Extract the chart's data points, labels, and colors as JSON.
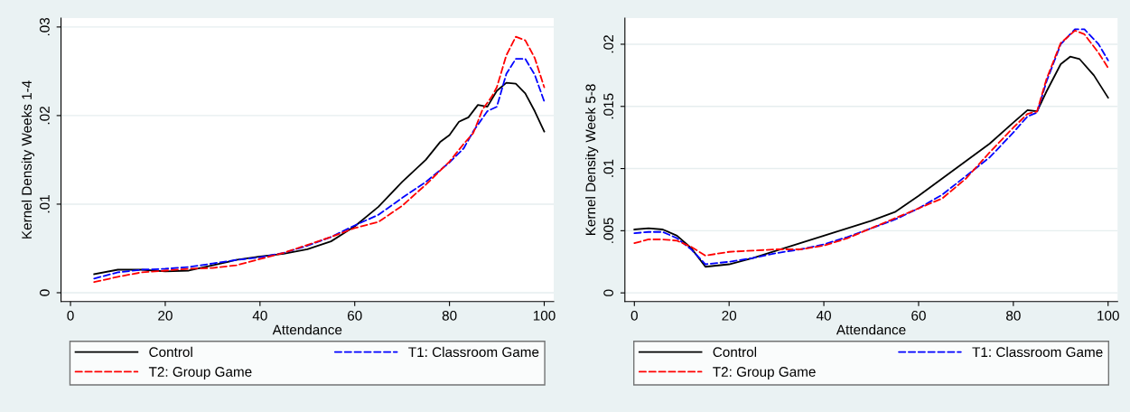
{
  "chart_data": [
    {
      "type": "line",
      "xlabel": "Attendance",
      "ylabel": "Kernel Density Weeks 1-4",
      "xlim": [
        -2,
        102
      ],
      "ylim": [
        -0.001,
        0.031
      ],
      "xticks": [
        0,
        20,
        40,
        60,
        80,
        100
      ],
      "yticks": [
        {
          "value": 0,
          "label": "0"
        },
        {
          "value": 0.01,
          "label": ".01"
        },
        {
          "value": 0.02,
          "label": ".02"
        },
        {
          "value": 0.03,
          "label": ".03"
        }
      ],
      "grid": "y",
      "legend": "bottom",
      "marker": "none",
      "series": [
        {
          "name": "Control",
          "color": "#000000",
          "line_style": "solid",
          "x": [
            5,
            10,
            15,
            20,
            25,
            30,
            35,
            40,
            45,
            50,
            55,
            60,
            65,
            70,
            75,
            78,
            80,
            82,
            84,
            86,
            88,
            90,
            92,
            94,
            96,
            98,
            100
          ],
          "values": [
            0.0021,
            0.0026,
            0.0026,
            0.0024,
            0.0025,
            0.0031,
            0.0037,
            0.0041,
            0.0044,
            0.0049,
            0.0058,
            0.0075,
            0.0097,
            0.0125,
            0.015,
            0.017,
            0.0178,
            0.0193,
            0.0198,
            0.0212,
            0.021,
            0.0228,
            0.0237,
            0.0236,
            0.0225,
            0.0205,
            0.0182
          ]
        },
        {
          "name": "T1: Classroom Game",
          "color": "#0000ff",
          "line_style": "dashed",
          "x": [
            5,
            10,
            15,
            20,
            25,
            30,
            35,
            40,
            45,
            50,
            55,
            60,
            65,
            70,
            75,
            80,
            83,
            85,
            88,
            90,
            92,
            94,
            96,
            98,
            100
          ],
          "values": [
            0.0016,
            0.0023,
            0.0026,
            0.0027,
            0.0029,
            0.0033,
            0.0037,
            0.004,
            0.0045,
            0.0053,
            0.0063,
            0.0076,
            0.0088,
            0.0107,
            0.0125,
            0.0147,
            0.0163,
            0.0182,
            0.0205,
            0.021,
            0.0247,
            0.0264,
            0.0264,
            0.0246,
            0.0216
          ]
        },
        {
          "name": "T2: Group Game",
          "color": "#ff0000",
          "line_style": "dashed",
          "x": [
            5,
            10,
            15,
            20,
            25,
            30,
            35,
            40,
            45,
            50,
            55,
            60,
            65,
            70,
            75,
            80,
            83,
            85,
            87,
            89,
            90,
            92,
            94,
            96,
            98,
            100
          ],
          "values": [
            0.0012,
            0.0018,
            0.0023,
            0.0025,
            0.0027,
            0.0028,
            0.0031,
            0.0038,
            0.0045,
            0.0054,
            0.0063,
            0.0073,
            0.008,
            0.0098,
            0.0122,
            0.0148,
            0.0168,
            0.018,
            0.0207,
            0.0222,
            0.0232,
            0.0268,
            0.0289,
            0.0285,
            0.0265,
            0.0232
          ]
        }
      ]
    },
    {
      "type": "line",
      "xlabel": "Attendance",
      "ylabel": "Kernel Density Week 5-8",
      "xlim": [
        -2,
        102
      ],
      "ylim": [
        -0.0007,
        0.0221
      ],
      "xticks": [
        0,
        20,
        40,
        60,
        80,
        100
      ],
      "yticks": [
        {
          "value": 0,
          "label": "0"
        },
        {
          "value": 0.005,
          "label": ".005"
        },
        {
          "value": 0.01,
          "label": ".01"
        },
        {
          "value": 0.015,
          "label": ".015"
        },
        {
          "value": 0.02,
          "label": ".02"
        }
      ],
      "grid": "y",
      "legend": "bottom",
      "marker": "none",
      "series": [
        {
          "name": "Control",
          "color": "#000000",
          "line_style": "solid",
          "x": [
            0,
            3,
            6,
            9,
            12,
            15,
            20,
            25,
            30,
            35,
            40,
            45,
            50,
            55,
            60,
            65,
            70,
            75,
            80,
            83,
            85,
            87,
            90,
            92,
            94,
            97,
            100
          ],
          "values": [
            0.0051,
            0.0052,
            0.0051,
            0.0046,
            0.0036,
            0.0021,
            0.0023,
            0.0028,
            0.0034,
            0.004,
            0.0046,
            0.0052,
            0.0058,
            0.0065,
            0.0078,
            0.0092,
            0.0106,
            0.012,
            0.0137,
            0.0147,
            0.0146,
            0.0162,
            0.0184,
            0.019,
            0.0188,
            0.0175,
            0.0157
          ]
        },
        {
          "name": "T1: Classroom Game",
          "color": "#0000ff",
          "line_style": "dashed",
          "x": [
            0,
            3,
            6,
            9,
            12,
            15,
            20,
            25,
            30,
            35,
            40,
            45,
            50,
            55,
            60,
            65,
            70,
            75,
            80,
            83,
            85,
            87,
            90,
            93,
            95,
            98,
            100
          ],
          "values": [
            0.0048,
            0.0049,
            0.0049,
            0.0044,
            0.0035,
            0.0023,
            0.0025,
            0.0028,
            0.0032,
            0.0035,
            0.0039,
            0.0045,
            0.0052,
            0.0059,
            0.0068,
            0.0079,
            0.0094,
            0.0109,
            0.0129,
            0.0142,
            0.0145,
            0.017,
            0.02,
            0.0212,
            0.0212,
            0.02,
            0.0187
          ]
        },
        {
          "name": "T2: Group Game",
          "color": "#ff0000",
          "line_style": "dashed",
          "x": [
            0,
            3,
            6,
            9,
            12,
            15,
            20,
            25,
            30,
            35,
            40,
            45,
            50,
            55,
            60,
            65,
            70,
            75,
            80,
            83,
            85,
            87,
            90,
            93,
            95,
            98,
            100
          ],
          "values": [
            0.004,
            0.0043,
            0.0043,
            0.0042,
            0.0037,
            0.003,
            0.0033,
            0.0034,
            0.0035,
            0.0035,
            0.0038,
            0.0044,
            0.0052,
            0.006,
            0.0068,
            0.0076,
            0.0092,
            0.0113,
            0.0133,
            0.0144,
            0.0146,
            0.0172,
            0.0201,
            0.0211,
            0.0208,
            0.0193,
            0.0181
          ]
        }
      ]
    }
  ]
}
